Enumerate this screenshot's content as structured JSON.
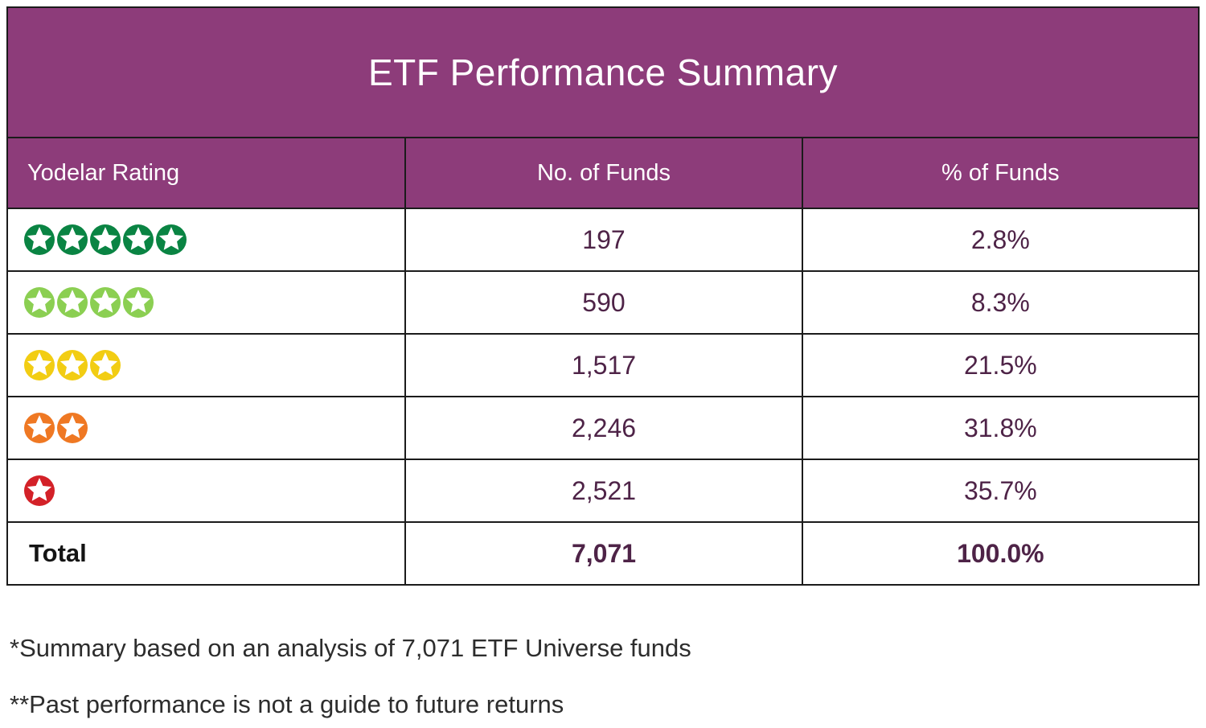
{
  "chart_data": {
    "type": "table",
    "title": "ETF Performance Summary",
    "columns": [
      "Yodelar Rating",
      "No. of Funds",
      "% of Funds"
    ],
    "rows": [
      [
        "5 stars",
        197,
        "2.8%"
      ],
      [
        "4 stars",
        590,
        "8.3%"
      ],
      [
        "3 stars",
        1517,
        "21.5%"
      ],
      [
        "2 stars",
        2246,
        "31.8%"
      ],
      [
        "1 star",
        2521,
        "35.7%"
      ],
      [
        "Total",
        7071,
        "100.0%"
      ]
    ],
    "notes": [
      "*Summary based on an analysis of 7,071 ETF Universe funds",
      "**Past performance is not a guide to future returns"
    ]
  },
  "table": {
    "title": "ETF Performance Summary",
    "columns": {
      "rating": "Yodelar Rating",
      "funds": "No. of Funds",
      "pct": "% of Funds"
    },
    "rows": [
      {
        "stars": 5,
        "star_color": "#0a8443",
        "rating_name": "5-star-rating",
        "funds": "197",
        "pct": "2.8%"
      },
      {
        "stars": 4,
        "star_color": "#8bcf52",
        "rating_name": "4-star-rating",
        "funds": "590",
        "pct": "8.3%"
      },
      {
        "stars": 3,
        "star_color": "#f2cd13",
        "rating_name": "3-star-rating",
        "funds": "1,517",
        "pct": "21.5%"
      },
      {
        "stars": 2,
        "star_color": "#ef7823",
        "rating_name": "2-star-rating",
        "funds": "2,246",
        "pct": "31.8%"
      },
      {
        "stars": 1,
        "star_color": "#d32128",
        "rating_name": "1-star-rating",
        "funds": "2,521",
        "pct": "35.7%"
      }
    ],
    "total": {
      "label": "Total",
      "funds": "7,071",
      "pct": "100.0%"
    }
  },
  "footnotes": {
    "line1": "*Summary based on an analysis of 7,071 ETF Universe funds",
    "line2": "**Past performance is not a guide to future returns"
  },
  "colors": {
    "header_bg": "#8d3c7a",
    "border": "#1b1b1b",
    "value_text": "#4e2347",
    "title_text": "#ffffff",
    "footnote_text": "#2d2d2d",
    "star_5": "#0a8443",
    "star_4": "#8bcf52",
    "star_3": "#f2cd13",
    "star_2": "#ef7823",
    "star_1": "#d32128"
  }
}
